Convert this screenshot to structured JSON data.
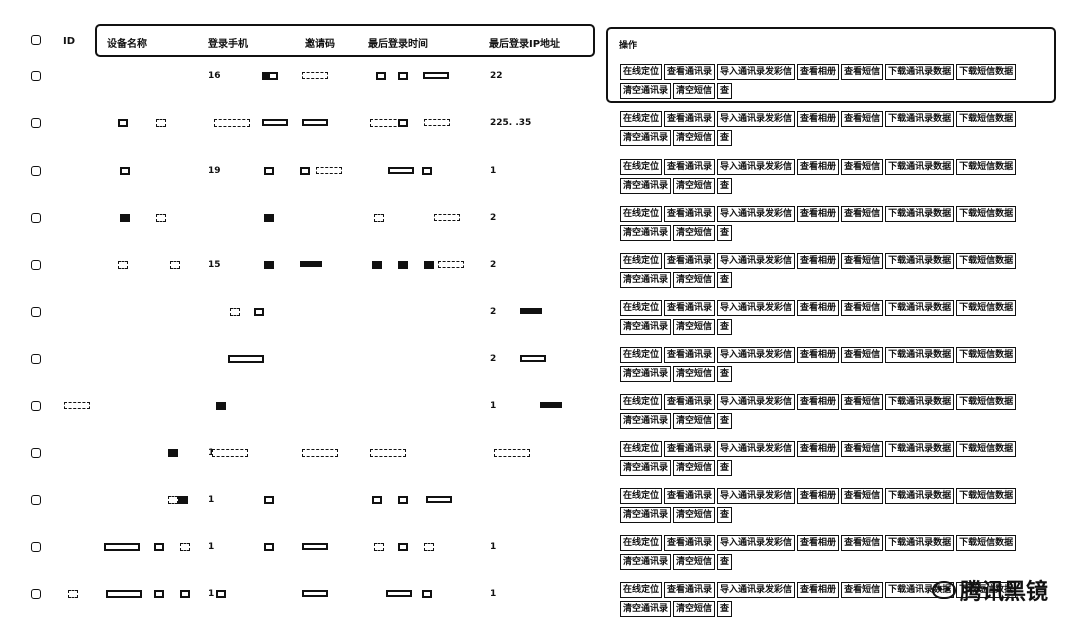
{
  "header": {
    "id_label": "ID",
    "device_name_label": "设备名称",
    "login_phone_label": "登录手机",
    "invite_code_label": "邀请码",
    "last_login_time_label": "最后登录时间",
    "last_login_ip_label": "最后登录IP地址",
    "actions_label": "操作"
  },
  "actions": {
    "online_locate": "在线定位",
    "view_contacts": "查看通讯录",
    "import_contacts_mms": "导入通讯录发彩信",
    "view_album": "查看相册",
    "view_sms": "查看短信",
    "download_contacts_data": "下载通讯录数据",
    "download_sms_data": "下载短信数据",
    "clear_contacts": "清空通讯录",
    "clear_sms": "清空短信",
    "delete": "查"
  },
  "rows": [
    {
      "phone": "16",
      "ip": "22"
    },
    {
      "phone": "",
      "ip": "225.      .35"
    },
    {
      "phone": "19",
      "ip": "1"
    },
    {
      "phone": "",
      "ip": "2"
    },
    {
      "phone": "15",
      "ip": "2"
    },
    {
      "phone": "",
      "ip": "2"
    },
    {
      "phone": "",
      "ip": "2"
    },
    {
      "phone": "",
      "ip": "1"
    },
    {
      "phone": "1",
      "ip": ""
    },
    {
      "phone": "1",
      "ip": ""
    },
    {
      "phone": "1",
      "ip": "1"
    },
    {
      "phone": "1",
      "ip": "1"
    }
  ],
  "watermark": "腾讯黑镜"
}
